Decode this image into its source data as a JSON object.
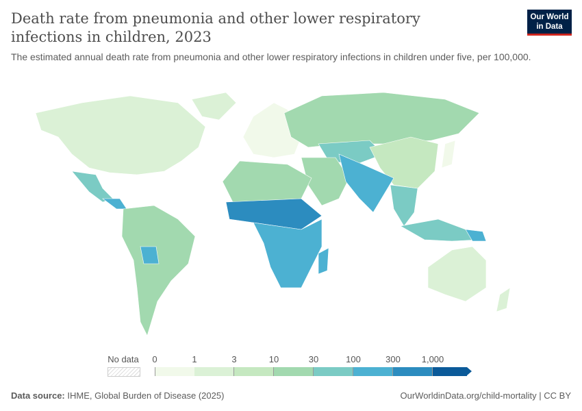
{
  "header": {
    "title": "Death rate from pneumonia and other lower respiratory infections in children, 2023",
    "subtitle": "The estimated annual death rate from pneumonia and other lower respiratory infections in children under five, per 100,000.",
    "logo": "Our World in Data"
  },
  "legend": {
    "no_data": "No data",
    "ticks": [
      "0",
      "1",
      "3",
      "10",
      "30",
      "100",
      "300",
      "1,000"
    ],
    "colors": [
      "#f1f9ea",
      "#dbf1d6",
      "#c5e8c0",
      "#a2d9af",
      "#7bcbc4",
      "#4cb1d2",
      "#2c8cbf",
      "#0b5a99"
    ],
    "no_data_pattern": "hatched-gray"
  },
  "footer": {
    "source_label": "Data source:",
    "source": "IHME, Global Burden of Disease (2025)",
    "link": "OurWorldinData.org/child-mortality | CC BY"
  }
}
